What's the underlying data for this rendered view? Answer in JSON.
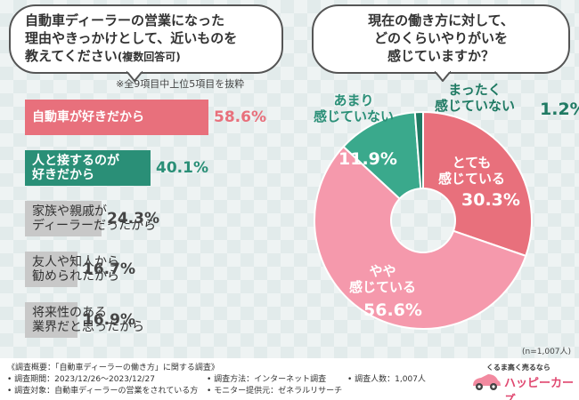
{
  "left_question": {
    "line1": "自動車ディーラーの営業になった",
    "line2": "理由やきっかけとして、近いものを",
    "line3": "教えてください",
    "line3_small": "(複数回答可)"
  },
  "note": "※全9項目中上位5項目を抜粋",
  "right_question": {
    "line1": "現在の働き方に対して、",
    "line2": "どのくらいやりがいを",
    "line3": "感じていますか？"
  },
  "chart_data": [
    {
      "type": "bar",
      "orientation": "horizontal",
      "categories": [
        "自動車が好きだから",
        "人と接するのが好きだから",
        "家族や親戚がディーラーだったから",
        "友人や知人から勧められたから",
        "将来性のある業界だと思ったから"
      ],
      "label_lines": [
        [
          "自動車が好きだから"
        ],
        [
          "人と接するのが",
          "好きだから"
        ],
        [
          "家族や親戚が",
          "ディーラーだったから"
        ],
        [
          "友人や知人から",
          "勧められたから"
        ],
        [
          "将来性のある",
          "業界だと思ったから"
        ]
      ],
      "values": [
        58.6,
        40.1,
        24.3,
        16.7,
        16.9
      ],
      "value_labels": [
        "58.6%",
        "40.1%",
        "24.3%",
        "16.7%",
        "16.9%"
      ],
      "colors": [
        "#e8707c",
        "#2a8f77",
        "#c8c8c8",
        "#c8c8c8",
        "#c8c8c8"
      ],
      "value_colors": [
        "#e8707c",
        "#2a8f77",
        "#444444",
        "#444444",
        "#444444"
      ],
      "xlim": [
        0,
        100
      ]
    },
    {
      "type": "pie",
      "style": "donut",
      "categories": [
        "とても感じている",
        "やや感じている",
        "あまり感じていない",
        "まったく感じていない"
      ],
      "label_lines": [
        [
          "とても",
          "感じている"
        ],
        [
          "やや",
          "感じている"
        ],
        [
          "あまり",
          "感じていない"
        ],
        [
          "まったく",
          "感じていない"
        ]
      ],
      "values": [
        30.3,
        56.6,
        11.9,
        1.2
      ],
      "value_labels": [
        "30.3%",
        "56.6%",
        "11.9%",
        "1.2%"
      ],
      "colors": [
        "#e8707c",
        "#f599ac",
        "#3aa98c",
        "#1f7a63"
      ],
      "n_label": "(n=1,007人)"
    }
  ],
  "footer": {
    "survey_title": "《調査概要：「自動車ディーラーの働き方」に関する調査》",
    "period": "• 調査期間：2023/12/26～2023/12/27",
    "target": "• 調査対象：自動車ディーラーの営業をされている方",
    "method": "• 調査方法：インターネット調査",
    "provider": "• モニター提供元：ゼネラルリサーチ",
    "count": "• 調査人数：1,007人",
    "logo_sub": "くるま高く売るなら",
    "logo_main": "ハッピーカーズ"
  }
}
